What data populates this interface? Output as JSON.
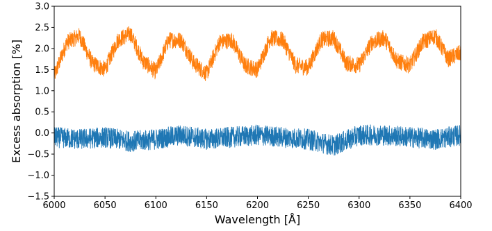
{
  "chart_data": {
    "type": "line",
    "title": "",
    "xlabel": "Wavelength [Å]",
    "ylabel": "Excess absorption [%]",
    "xlim": [
      6000,
      6400
    ],
    "ylim": [
      -1.5,
      3.0
    ],
    "xticks": [
      6000,
      6050,
      6100,
      6150,
      6200,
      6250,
      6300,
      6350,
      6400
    ],
    "xtick_labels": [
      "6000",
      "6050",
      "6100",
      "6150",
      "6200",
      "6250",
      "6300",
      "6350",
      "6400"
    ],
    "yticks": [
      -1.5,
      -1.0,
      -0.5,
      0.0,
      0.5,
      1.0,
      1.5,
      2.0,
      2.5,
      3.0
    ],
    "ytick_labels": [
      "−1.5",
      "−1.0",
      "−0.5",
      "0.0",
      "0.5",
      "1.0",
      "1.5",
      "2.0",
      "2.5",
      "3.0"
    ],
    "grid": false,
    "legend": "none",
    "series": [
      {
        "color": "#ff7f0e",
        "x": [
          6000,
          6012.5,
          6025,
          6037.5,
          6050,
          6062.5,
          6075,
          6087.5,
          6100,
          6112.5,
          6125,
          6137.5,
          6150,
          6162.5,
          6175,
          6187.5,
          6200,
          6212.5,
          6225,
          6237.5,
          6250,
          6262.5,
          6275,
          6287.5,
          6300,
          6312.5,
          6325,
          6337.5,
          6350,
          6362.5,
          6375,
          6387.5,
          6400
        ],
        "y": [
          1.35,
          2.15,
          2.3,
          1.65,
          1.5,
          2.2,
          2.35,
          1.7,
          1.45,
          2.2,
          2.2,
          1.65,
          1.4,
          2.15,
          2.2,
          1.6,
          1.5,
          2.25,
          2.2,
          1.6,
          1.55,
          2.2,
          2.25,
          1.65,
          1.6,
          2.15,
          2.25,
          1.7,
          1.6,
          2.15,
          2.3,
          1.75,
          1.9
        ],
        "noise_amplitude": 0.2
      },
      {
        "color": "#1f77b4",
        "x": [
          6000,
          6025,
          6050,
          6075,
          6100,
          6125,
          6150,
          6175,
          6200,
          6225,
          6250,
          6275,
          6300,
          6325,
          6350,
          6375,
          6400
        ],
        "y": [
          -0.1,
          -0.15,
          -0.1,
          -0.2,
          -0.15,
          -0.05,
          -0.15,
          -0.1,
          -0.05,
          -0.1,
          -0.15,
          -0.3,
          -0.05,
          -0.05,
          -0.1,
          -0.15,
          -0.05
        ],
        "noise_amplitude": 0.25
      }
    ]
  }
}
